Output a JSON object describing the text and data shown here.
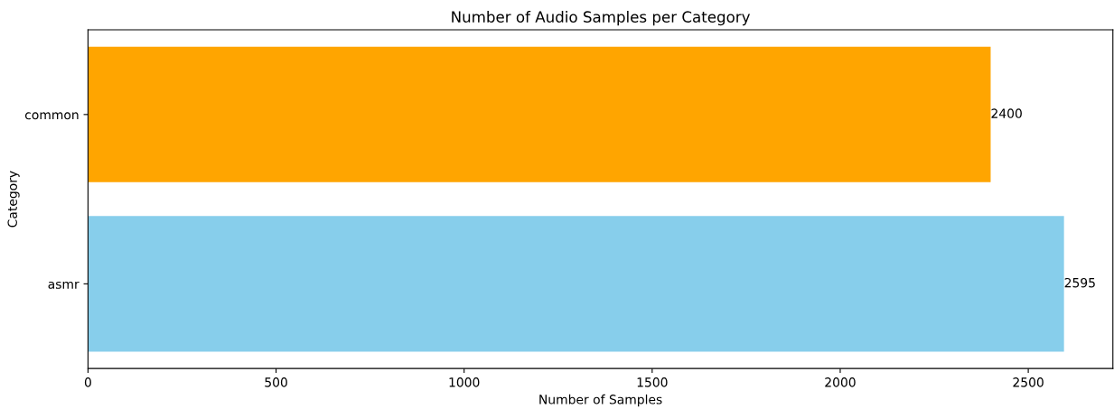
{
  "chart_data": {
    "type": "bar",
    "orientation": "horizontal",
    "title": "Number of Audio Samples per Category",
    "xlabel": "Number of Samples",
    "ylabel": "Category",
    "categories": [
      "common",
      "asmr"
    ],
    "values": [
      2400,
      2595
    ],
    "colors": [
      "#ffa500",
      "#87ceeb"
    ],
    "xlim": [
      0,
      2725
    ],
    "xticks": [
      0,
      500,
      1000,
      1500,
      2000,
      2500
    ],
    "data_labels": true,
    "grid": false,
    "legend": false
  }
}
